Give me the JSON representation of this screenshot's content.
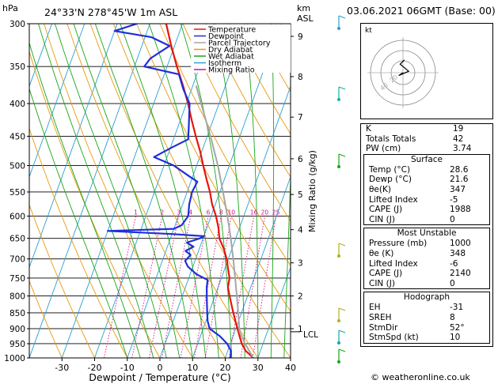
{
  "header": {
    "hpa_label": "hPa",
    "location": "24°33'N  278°45'W  1m  ASL",
    "km_label": "km",
    "asl_label": "ASL",
    "date": "03.06.2021  06GMT  (Base: 00)"
  },
  "chart_data": {
    "type": "line",
    "title": "24°33'N  278°45'W  1m  ASL",
    "xlabel": "Dewpoint / Temperature (°C)",
    "ylabel": "hPa",
    "xlim": [
      -40,
      40
    ],
    "ylim": [
      1000,
      300
    ],
    "x_ticks": [
      -30,
      -20,
      -10,
      0,
      10,
      20,
      30,
      40
    ],
    "pressure_levels": [
      300,
      350,
      400,
      450,
      500,
      550,
      600,
      650,
      700,
      750,
      800,
      850,
      900,
      950,
      1000
    ],
    "km_ticks": [
      {
        "label": "9",
        "p": 314
      },
      {
        "label": "8",
        "p": 363
      },
      {
        "label": "7",
        "p": 420
      },
      {
        "label": "6",
        "p": 488
      },
      {
        "label": "5",
        "p": 555
      },
      {
        "label": "4",
        "p": 630
      },
      {
        "label": "3",
        "p": 710
      },
      {
        "label": "2",
        "p": 800
      },
      {
        "label": "1",
        "p": 900
      }
    ],
    "lcl_label": "LCL",
    "lcl_p": 910,
    "mixing_ratio_label": "Mixing Ratio (g/kg)",
    "mixing_ratios": [
      "1",
      "2",
      "3",
      "4",
      "6",
      "8",
      "10",
      "16",
      "20",
      "25"
    ],
    "legend": [
      {
        "name": "Temperature",
        "color": "#e8140c"
      },
      {
        "name": "Dewpoint",
        "color": "#1e2fd9"
      },
      {
        "name": "Parcel Trajectory",
        "color": "#a6a6a6"
      },
      {
        "name": "Dry Adiabat",
        "color": "#e89a0e"
      },
      {
        "name": "Wet Adiabat",
        "color": "#18a618"
      },
      {
        "name": "Isotherm",
        "color": "#29a0d0"
      },
      {
        "name": "Mixing Ratio",
        "color": "#d0108a"
      }
    ],
    "series": [
      {
        "name": "Temperature",
        "color": "#e8140c",
        "points": [
          [
            1000,
            28.6
          ],
          [
            975,
            25.5
          ],
          [
            950,
            23.5
          ],
          [
            925,
            22.0
          ],
          [
            900,
            20.5
          ],
          [
            875,
            19.0
          ],
          [
            850,
            17.5
          ],
          [
            825,
            16.0
          ],
          [
            800,
            14.5
          ],
          [
            775,
            13.0
          ],
          [
            750,
            12.5
          ],
          [
            725,
            11.0
          ],
          [
            700,
            9.5
          ],
          [
            675,
            7.5
          ],
          [
            650,
            5.0
          ],
          [
            625,
            3.5
          ],
          [
            600,
            1.5
          ],
          [
            575,
            -1.0
          ],
          [
            550,
            -3.0
          ],
          [
            525,
            -5.5
          ],
          [
            500,
            -8.0
          ],
          [
            475,
            -10.5
          ],
          [
            450,
            -13.5
          ],
          [
            425,
            -16.5
          ],
          [
            400,
            -19.5
          ],
          [
            375,
            -23.0
          ],
          [
            350,
            -27.0
          ],
          [
            325,
            -31.0
          ],
          [
            300,
            -35.0
          ]
        ]
      },
      {
        "name": "Dewpoint",
        "color": "#1e2fd9",
        "points": [
          [
            1000,
            21.6
          ],
          [
            975,
            21.0
          ],
          [
            950,
            19.0
          ],
          [
            925,
            16.0
          ],
          [
            900,
            12.0
          ],
          [
            875,
            10.5
          ],
          [
            850,
            9.5
          ],
          [
            825,
            8.5
          ],
          [
            800,
            7.5
          ],
          [
            775,
            6.5
          ],
          [
            755,
            6.0
          ],
          [
            740,
            2.0
          ],
          [
            720,
            -1.5
          ],
          [
            705,
            -3.0
          ],
          [
            690,
            -2.0
          ],
          [
            680,
            -4.0
          ],
          [
            670,
            -2.0
          ],
          [
            660,
            -4.5
          ],
          [
            650,
            -1.0
          ],
          [
            645,
            0.0
          ],
          [
            640,
            -10.0
          ],
          [
            633,
            -30.0
          ],
          [
            628,
            -10.0
          ],
          [
            620,
            -8.0
          ],
          [
            600,
            -7.0
          ],
          [
            575,
            -8.0
          ],
          [
            550,
            -8.5
          ],
          [
            530,
            -8.0
          ],
          [
            520,
            -11.0
          ],
          [
            500,
            -17.0
          ],
          [
            485,
            -24.0
          ],
          [
            470,
            -20.0
          ],
          [
            455,
            -15.5
          ],
          [
            430,
            -17.0
          ],
          [
            400,
            -19.0
          ],
          [
            380,
            -22.5
          ],
          [
            360,
            -25.5
          ],
          [
            350,
            -37.0
          ],
          [
            340,
            -36.0
          ],
          [
            325,
            -31.5
          ],
          [
            315,
            -38.0
          ],
          [
            308,
            -50.0
          ],
          [
            300,
            -44.0
          ]
        ]
      },
      {
        "name": "Parcel Trajectory",
        "color": "#a6a6a6",
        "points": [
          [
            1000,
            28.6
          ],
          [
            950,
            24.5
          ],
          [
            910,
            21.5
          ],
          [
            850,
            19.0
          ],
          [
            800,
            16.7
          ],
          [
            750,
            14.2
          ],
          [
            700,
            11.5
          ],
          [
            650,
            8.5
          ],
          [
            600,
            5.0
          ],
          [
            550,
            1.0
          ],
          [
            500,
            -3.5
          ],
          [
            450,
            -9.0
          ],
          [
            400,
            -15.5
          ],
          [
            375,
            -19.0
          ]
        ]
      }
    ]
  },
  "hodograph": {
    "label": "kt",
    "ring_labels": [
      "20",
      "40"
    ],
    "u": [
      0,
      -3,
      4,
      -2,
      1
    ],
    "v": [
      0,
      2,
      -1,
      -6,
      -9
    ]
  },
  "indices": [
    {
      "label": "K",
      "value": "19"
    },
    {
      "label": "Totals Totals",
      "value": "42"
    },
    {
      "label": "PW (cm)",
      "value": "3.74"
    }
  ],
  "surface": {
    "title": "Surface",
    "rows": [
      {
        "label": "Temp (°C)",
        "value": "28.6"
      },
      {
        "label": "Dewp (°C)",
        "value": "21.6"
      },
      {
        "label": "θe(K)",
        "value": "347"
      },
      {
        "label": "Lifted Index",
        "value": "-5"
      },
      {
        "label": "CAPE (J)",
        "value": "1988"
      },
      {
        "label": "CIN (J)",
        "value": "0"
      }
    ]
  },
  "most_unstable": {
    "title": "Most Unstable",
    "rows": [
      {
        "label": "Pressure (mb)",
        "value": "1000"
      },
      {
        "label": "θe (K)",
        "value": "348"
      },
      {
        "label": "Lifted Index",
        "value": "-6"
      },
      {
        "label": "CAPE (J)",
        "value": "2140"
      },
      {
        "label": "CIN (J)",
        "value": "0"
      }
    ]
  },
  "hodograph_table": {
    "title": "Hodograph",
    "rows": [
      {
        "label": "EH",
        "value": "-31"
      },
      {
        "label": "SREH",
        "value": "8"
      },
      {
        "label": "StmDir",
        "value": "52°"
      },
      {
        "label": "StmSpd (kt)",
        "value": "10"
      }
    ]
  },
  "copyright": "© weatheronline.co.uk"
}
